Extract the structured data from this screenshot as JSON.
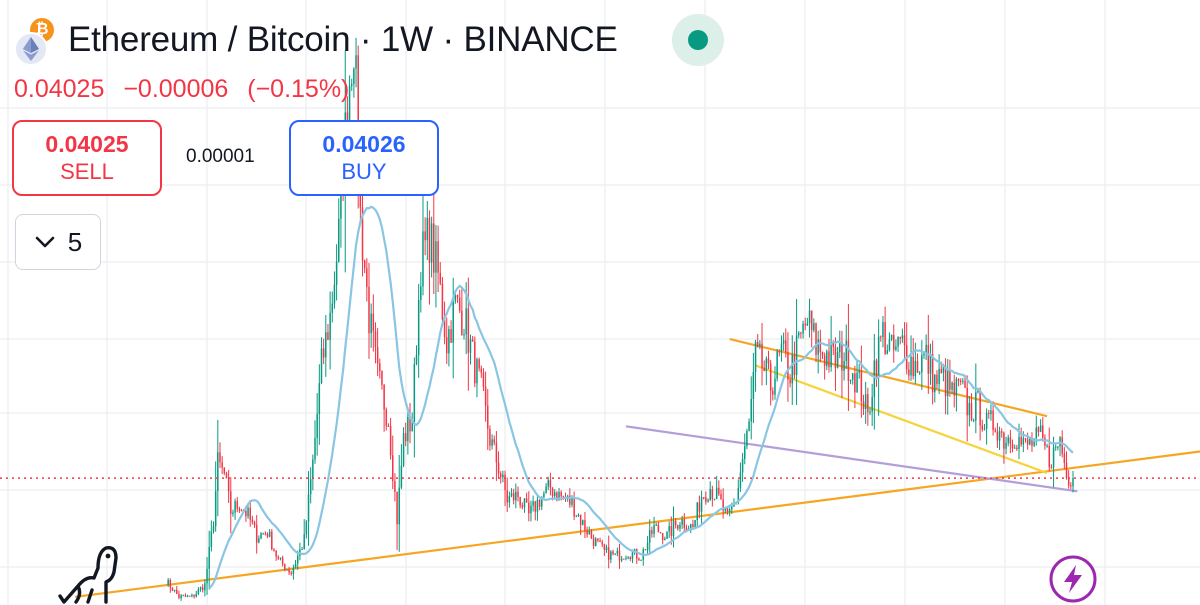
{
  "header": {
    "title": "Ethereum / Bitcoin · 1W · BINANCE",
    "base_icon": "ethereum-icon",
    "quote_icon": "bitcoin-icon",
    "quote_icon_glyph": "₿",
    "status_icon": "market-open-dot-icon",
    "status_color": "#089981"
  },
  "quote": {
    "last": "0.04025",
    "change": "−0.00006",
    "change_pct": "(−0.15%)",
    "color": "#f23645"
  },
  "trade": {
    "sell_price": "0.04025",
    "sell_label": "SELL",
    "spread": "0.00001",
    "buy_price": "0.04026",
    "buy_label": "BUY"
  },
  "indicators_toggle": {
    "icon": "chevron-down-icon",
    "count": "5"
  },
  "footer": {
    "logo_icon": "tradingview-dino-icon",
    "flash_icon": "lightning-bolt-icon"
  },
  "chart_data": {
    "type": "candlestick",
    "symbol": "ETHBTC",
    "interval": "1W",
    "exchange": "BINANCE",
    "ylim": [
      0.009,
      0.158
    ],
    "weeks": 420,
    "up_color": "#089981",
    "down_color": "#f23645",
    "ma_color": "#89c6e4",
    "ma_length": 20,
    "grid": true,
    "legend": "none",
    "last_price_line": {
      "value": 0.04025,
      "color": "#f23645",
      "style": "dotted"
    },
    "anchors": [
      [
        0,
        0.015
      ],
      [
        6,
        0.011
      ],
      [
        12,
        0.011
      ],
      [
        18,
        0.014
      ],
      [
        22,
        0.03
      ],
      [
        24,
        0.044
      ],
      [
        27,
        0.041
      ],
      [
        30,
        0.032
      ],
      [
        34,
        0.034
      ],
      [
        38,
        0.031
      ],
      [
        42,
        0.026
      ],
      [
        47,
        0.027
      ],
      [
        52,
        0.02
      ],
      [
        58,
        0.017
      ],
      [
        64,
        0.025
      ],
      [
        68,
        0.044
      ],
      [
        72,
        0.068
      ],
      [
        76,
        0.08
      ],
      [
        80,
        0.1
      ],
      [
        84,
        0.133
      ],
      [
        87,
        0.15
      ],
      [
        90,
        0.105
      ],
      [
        94,
        0.08
      ],
      [
        98,
        0.065
      ],
      [
        103,
        0.055
      ],
      [
        107,
        0.03
      ],
      [
        110,
        0.05
      ],
      [
        114,
        0.055
      ],
      [
        118,
        0.094
      ],
      [
        122,
        0.1
      ],
      [
        126,
        0.09
      ],
      [
        130,
        0.074
      ],
      [
        134,
        0.083
      ],
      [
        138,
        0.08
      ],
      [
        142,
        0.07
      ],
      [
        146,
        0.062
      ],
      [
        150,
        0.05
      ],
      [
        154,
        0.043
      ],
      [
        158,
        0.035
      ],
      [
        163,
        0.036
      ],
      [
        168,
        0.031
      ],
      [
        173,
        0.035
      ],
      [
        178,
        0.038
      ],
      [
        182,
        0.036
      ],
      [
        188,
        0.034
      ],
      [
        193,
        0.029
      ],
      [
        198,
        0.025
      ],
      [
        203,
        0.022
      ],
      [
        208,
        0.021
      ],
      [
        214,
        0.022
      ],
      [
        220,
        0.021
      ],
      [
        226,
        0.028
      ],
      [
        232,
        0.026
      ],
      [
        238,
        0.03
      ],
      [
        244,
        0.028
      ],
      [
        248,
        0.036
      ],
      [
        252,
        0.038
      ],
      [
        256,
        0.035
      ],
      [
        260,
        0.03
      ],
      [
        264,
        0.035
      ],
      [
        267,
        0.045
      ],
      [
        270,
        0.053
      ],
      [
        273,
        0.07
      ],
      [
        276,
        0.068
      ],
      [
        280,
        0.063
      ],
      [
        285,
        0.071
      ],
      [
        289,
        0.066
      ],
      [
        293,
        0.073
      ],
      [
        297,
        0.079
      ],
      [
        301,
        0.073
      ],
      [
        305,
        0.071
      ],
      [
        310,
        0.069
      ],
      [
        314,
        0.071
      ],
      [
        318,
        0.067
      ],
      [
        322,
        0.062
      ],
      [
        325,
        0.055
      ],
      [
        328,
        0.068
      ],
      [
        332,
        0.076
      ],
      [
        336,
        0.071
      ],
      [
        341,
        0.073
      ],
      [
        346,
        0.068
      ],
      [
        352,
        0.07
      ],
      [
        356,
        0.064
      ],
      [
        360,
        0.065
      ],
      [
        364,
        0.061
      ],
      [
        368,
        0.062
      ],
      [
        372,
        0.057
      ],
      [
        376,
        0.058
      ],
      [
        380,
        0.053
      ],
      [
        384,
        0.054
      ],
      [
        388,
        0.05
      ],
      [
        393,
        0.051
      ],
      [
        397,
        0.048
      ],
      [
        401,
        0.049
      ],
      [
        405,
        0.05
      ],
      [
        409,
        0.045
      ],
      [
        412,
        0.047
      ],
      [
        414,
        0.05
      ],
      [
        416,
        0.044
      ],
      [
        418,
        0.041
      ],
      [
        420,
        0.04025
      ]
    ],
    "trendlines": [
      {
        "name": "support",
        "color": "#f5a623",
        "from": [
          -42,
          0.011
        ],
        "to": [
          409,
          0.042
        ]
      },
      {
        "name": "lower-channel",
        "color": "#b39ddb",
        "from": [
          213,
          0.053
        ],
        "to": [
          422,
          0.037
        ]
      },
      {
        "name": "upper-wedge",
        "color": "#f5a623",
        "from": [
          261,
          0.0745
        ],
        "to": [
          408,
          0.0555
        ]
      },
      {
        "name": "lower-wedge",
        "color": "#f5d33c",
        "from": [
          273,
          0.068
        ],
        "to": [
          408,
          0.0415
        ]
      }
    ]
  }
}
